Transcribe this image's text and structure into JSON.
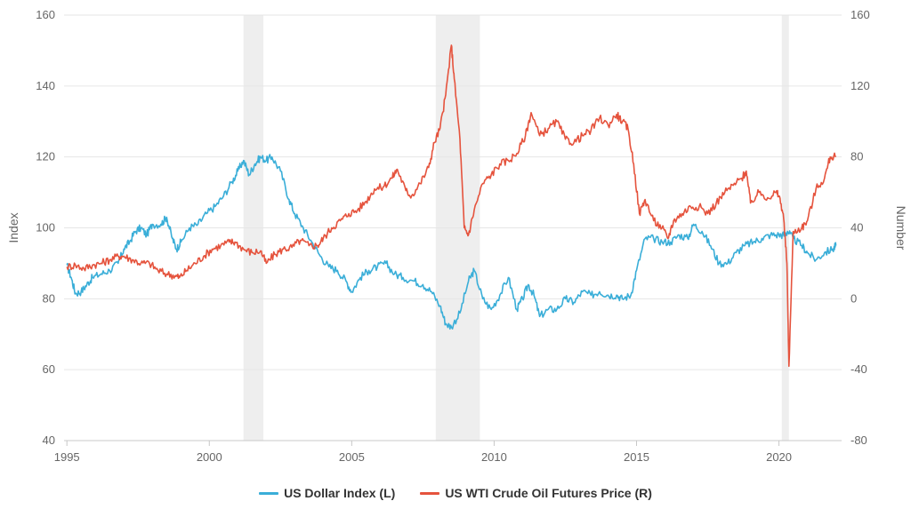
{
  "chart_data": {
    "type": "line",
    "title": "",
    "ylabel_left": "Index",
    "ylabel_right": "Number",
    "x_ticks": [
      "1995",
      "2000",
      "2005",
      "2010",
      "2015",
      "2020"
    ],
    "xlim": [
      1994.9,
      2022.2
    ],
    "ylim_left": [
      40,
      160
    ],
    "ylim_right": [
      -80,
      160
    ],
    "y_ticks_left": [
      "40",
      "60",
      "80",
      "100",
      "120",
      "140",
      "160"
    ],
    "y_ticks_right": [
      "-80",
      "-40",
      "0",
      "40",
      "80",
      "120",
      "160"
    ],
    "grid": true,
    "legend_position": "bottom-center",
    "recession_bands": [
      [
        2001.2,
        2001.9
      ],
      [
        2007.95,
        2009.5
      ],
      [
        2020.1,
        2020.35
      ]
    ],
    "series": [
      {
        "name": "US Dollar Index (L)",
        "axis": "left",
        "color": "#3aaed8",
        "x": [
          1995.0,
          1995.15,
          1995.3,
          1995.5,
          1995.7,
          1995.9,
          1996.2,
          1996.5,
          1996.8,
          1997.0,
          1997.2,
          1997.4,
          1997.6,
          1997.8,
          1998.0,
          1998.3,
          1998.5,
          1998.7,
          1998.85,
          1999.0,
          1999.3,
          1999.6,
          1999.9,
          2000.2,
          2000.5,
          2000.8,
          2001.0,
          2001.2,
          2001.4,
          2001.6,
          2001.8,
          2002.0,
          2002.2,
          2002.5,
          2002.8,
          2003.0,
          2003.3,
          2003.6,
          2003.9,
          2004.2,
          2004.5,
          2004.8,
          2005.0,
          2005.3,
          2005.6,
          2005.9,
          2006.2,
          2006.5,
          2006.8,
          2007.2,
          2007.5,
          2007.8,
          2008.1,
          2008.3,
          2008.5,
          2008.8,
          2009.1,
          2009.3,
          2009.6,
          2009.9,
          2010.2,
          2010.5,
          2010.8,
          2011.0,
          2011.2,
          2011.4,
          2011.6,
          2011.9,
          2012.2,
          2012.5,
          2012.8,
          2013.1,
          2013.4,
          2013.7,
          2014.0,
          2014.3,
          2014.5,
          2014.8,
          2015.0,
          2015.3,
          2015.6,
          2015.9,
          2016.2,
          2016.5,
          2016.8,
          2017.0,
          2017.3,
          2017.6,
          2017.9,
          2018.2,
          2018.5,
          2018.8,
          2019.1,
          2019.4,
          2019.7,
          2020.0,
          2020.2,
          2020.3,
          2020.5,
          2020.8,
          2021.0,
          2021.3,
          2021.6,
          2021.9,
          2022.0
        ],
        "values": [
          89.5,
          86,
          81.5,
          82,
          84,
          86,
          87,
          88,
          90,
          94,
          96,
          99,
          100,
          98,
          101,
          101,
          103,
          97,
          94,
          96,
          100,
          101,
          104,
          106,
          109,
          113,
          116,
          119,
          115,
          118,
          120,
          119,
          120,
          116,
          108,
          104,
          100,
          96,
          92,
          89,
          88,
          85,
          82,
          86,
          88,
          89,
          90,
          87,
          86,
          85,
          84,
          82,
          78,
          73,
          72,
          76,
          85,
          88,
          80,
          77,
          81,
          86,
          77,
          80,
          84,
          81,
          75,
          77,
          77,
          80,
          79,
          82,
          81,
          82,
          81,
          81,
          80,
          81,
          88,
          97,
          97,
          96,
          96,
          98,
          97,
          101,
          99,
          95,
          90,
          90,
          93,
          95,
          96,
          97,
          98,
          98,
          98,
          99,
          97,
          95,
          93,
          91,
          93,
          94,
          95
        ]
      },
      {
        "name": "US WTI Crude Oil Futures Price (R)",
        "axis": "right",
        "color": "#e5533d",
        "x": [
          1995.0,
          1995.3,
          1995.6,
          1995.9,
          1996.2,
          1996.5,
          1996.8,
          1997.0,
          1997.3,
          1997.6,
          1997.9,
          1998.2,
          1998.5,
          1998.8,
          1998.95,
          1999.2,
          1999.5,
          1999.8,
          2000.1,
          2000.4,
          2000.7,
          2000.9,
          2001.2,
          2001.5,
          2001.8,
          2002.0,
          2002.3,
          2002.6,
          2002.9,
          2003.2,
          2003.5,
          2003.8,
          2004.0,
          2004.3,
          2004.6,
          2004.9,
          2005.2,
          2005.5,
          2005.8,
          2006.1,
          2006.4,
          2006.6,
          2006.9,
          2007.1,
          2007.4,
          2007.7,
          2007.9,
          2008.1,
          2008.3,
          2008.5,
          2008.6,
          2008.8,
          2008.95,
          2009.1,
          2009.3,
          2009.6,
          2009.9,
          2010.2,
          2010.5,
          2010.8,
          2011.1,
          2011.3,
          2011.6,
          2011.9,
          2012.2,
          2012.5,
          2012.8,
          2013.1,
          2013.4,
          2013.7,
          2014.0,
          2014.3,
          2014.5,
          2014.7,
          2014.9,
          2015.1,
          2015.3,
          2015.6,
          2015.9,
          2016.1,
          2016.3,
          2016.6,
          2016.9,
          2017.2,
          2017.5,
          2017.8,
          2018.1,
          2018.4,
          2018.7,
          2018.85,
          2019.0,
          2019.3,
          2019.6,
          2019.9,
          2020.0,
          2020.15,
          2020.28,
          2020.35,
          2020.5,
          2020.8,
          2021.0,
          2021.3,
          2021.6,
          2021.8,
          2022.0
        ],
        "values": [
          18,
          19,
          17,
          19,
          20,
          22,
          24,
          24,
          22,
          20,
          20,
          16,
          14,
          13,
          12,
          16,
          20,
          24,
          28,
          30,
          32,
          32,
          28,
          26,
          27,
          20,
          25,
          28,
          29,
          33,
          30,
          30,
          34,
          40,
          44,
          48,
          50,
          55,
          62,
          63,
          68,
          73,
          61,
          58,
          65,
          74,
          88,
          96,
          115,
          143,
          124,
          90,
          40,
          36,
          50,
          65,
          70,
          76,
          78,
          82,
          92,
          105,
          92,
          96,
          100,
          90,
          88,
          92,
          95,
          102,
          98,
          104,
          100,
          96,
          76,
          48,
          56,
          44,
          40,
          34,
          44,
          48,
          52,
          52,
          48,
          54,
          60,
          64,
          68,
          72,
          54,
          60,
          57,
          60,
          58,
          48,
          20,
          -38,
          38,
          40,
          44,
          62,
          68,
          80,
          80
        ]
      }
    ]
  },
  "legend": {
    "items": [
      {
        "label": "US Dollar Index (L)",
        "color": "#3aaed8"
      },
      {
        "label": "US WTI Crude Oil Futures Price (R)",
        "color": "#e5533d"
      }
    ]
  }
}
